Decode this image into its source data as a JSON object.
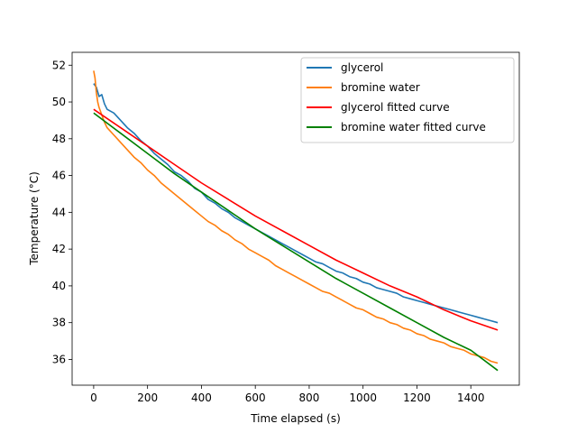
{
  "chart_data": {
    "type": "line",
    "xlabel": "Time elapsed (s)",
    "ylabel": "Temperature (°C)",
    "xlim": [
      -80,
      1580
    ],
    "ylim": [
      34.6,
      52.7
    ],
    "xticks": [
      0,
      200,
      400,
      600,
      800,
      1000,
      1200,
      1400
    ],
    "yticks": [
      36,
      38,
      40,
      42,
      44,
      46,
      48,
      50,
      52
    ],
    "grid": false,
    "legend_position": "top-right",
    "series": [
      {
        "name": "glycerol",
        "color": "#1f77b4",
        "x": [
          0,
          10,
          20,
          30,
          40,
          50,
          75,
          100,
          125,
          150,
          175,
          200,
          225,
          250,
          275,
          300,
          325,
          350,
          375,
          400,
          425,
          450,
          475,
          500,
          525,
          550,
          575,
          600,
          625,
          650,
          675,
          700,
          725,
          750,
          775,
          800,
          825,
          850,
          875,
          900,
          925,
          950,
          975,
          1000,
          1025,
          1050,
          1075,
          1100,
          1125,
          1150,
          1175,
          1200,
          1225,
          1250,
          1275,
          1300,
          1325,
          1350,
          1375,
          1400,
          1425,
          1450,
          1475,
          1500
        ],
        "y": [
          51.0,
          50.8,
          50.3,
          50.4,
          49.9,
          49.6,
          49.4,
          49.0,
          48.6,
          48.3,
          47.9,
          47.6,
          47.2,
          46.9,
          46.6,
          46.2,
          46.0,
          45.7,
          45.3,
          45.1,
          44.7,
          44.5,
          44.2,
          44.0,
          43.7,
          43.5,
          43.3,
          43.1,
          42.9,
          42.7,
          42.5,
          42.3,
          42.1,
          41.9,
          41.7,
          41.5,
          41.3,
          41.2,
          41.0,
          40.8,
          40.7,
          40.5,
          40.4,
          40.2,
          40.1,
          39.9,
          39.8,
          39.7,
          39.6,
          39.4,
          39.3,
          39.2,
          39.1,
          39.0,
          38.9,
          38.8,
          38.7,
          38.6,
          38.5,
          38.4,
          38.3,
          38.2,
          38.1,
          38.0
        ]
      },
      {
        "name": "bromine water",
        "color": "#ff7f0e",
        "x": [
          0,
          5,
          10,
          15,
          20,
          30,
          40,
          50,
          75,
          100,
          125,
          150,
          175,
          200,
          225,
          250,
          275,
          300,
          325,
          350,
          375,
          400,
          425,
          450,
          475,
          500,
          525,
          550,
          575,
          600,
          625,
          650,
          675,
          700,
          725,
          750,
          775,
          800,
          825,
          850,
          875,
          900,
          925,
          950,
          975,
          1000,
          1025,
          1050,
          1075,
          1100,
          1125,
          1150,
          1175,
          1200,
          1225,
          1250,
          1275,
          1300,
          1325,
          1350,
          1375,
          1400,
          1425,
          1450,
          1475,
          1500
        ],
        "y": [
          51.7,
          51.3,
          50.5,
          50.0,
          49.7,
          49.3,
          48.9,
          48.6,
          48.2,
          47.8,
          47.4,
          47.0,
          46.7,
          46.3,
          46.0,
          45.6,
          45.3,
          45.0,
          44.7,
          44.4,
          44.1,
          43.8,
          43.5,
          43.3,
          43.0,
          42.8,
          42.5,
          42.3,
          42.0,
          41.8,
          41.6,
          41.4,
          41.1,
          40.9,
          40.7,
          40.5,
          40.3,
          40.1,
          39.9,
          39.7,
          39.6,
          39.4,
          39.2,
          39.0,
          38.8,
          38.7,
          38.5,
          38.3,
          38.2,
          38.0,
          37.9,
          37.7,
          37.6,
          37.4,
          37.3,
          37.1,
          37.0,
          36.9,
          36.7,
          36.6,
          36.5,
          36.3,
          36.2,
          36.1,
          35.9,
          35.8
        ]
      },
      {
        "name": "glycerol fitted curve",
        "color": "#ff0000",
        "x": [
          0,
          100,
          200,
          300,
          400,
          500,
          600,
          700,
          800,
          900,
          1000,
          1100,
          1200,
          1300,
          1400,
          1500
        ],
        "y": [
          49.6,
          48.6,
          47.6,
          46.6,
          45.6,
          44.7,
          43.8,
          43.0,
          42.2,
          41.4,
          40.7,
          40.0,
          39.4,
          38.7,
          38.1,
          37.6
        ]
      },
      {
        "name": "bromine water fitted curve",
        "color": "#008000",
        "x": [
          0,
          100,
          200,
          300,
          400,
          500,
          600,
          700,
          800,
          900,
          1000,
          1100,
          1200,
          1300,
          1400,
          1500
        ],
        "y": [
          49.4,
          48.3,
          47.2,
          46.1,
          45.1,
          44.1,
          43.1,
          42.2,
          41.3,
          40.4,
          39.6,
          38.8,
          38.0,
          37.2,
          36.5,
          35.4
        ]
      }
    ]
  }
}
